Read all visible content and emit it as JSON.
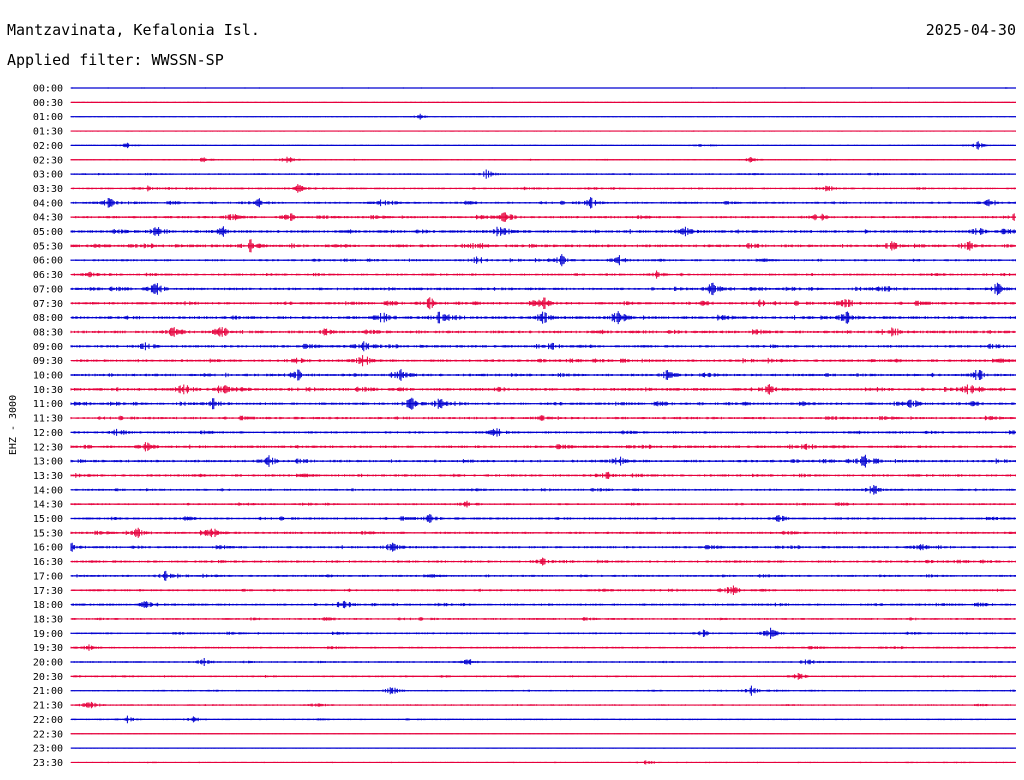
{
  "header": {
    "station": "Mantzavinata, Kefalonia Isl.",
    "date": "2025-04-30",
    "filter": "Applied filter: WWSSN-SP"
  },
  "chart_data": {
    "type": "line",
    "ylabel": "EHZ - 3000",
    "colors": [
      "#0000d0",
      "#e6003c"
    ],
    "rows": [
      {
        "label": "00:00",
        "activity": 0.05,
        "events": []
      },
      {
        "label": "00:30",
        "activity": 0.05,
        "events": []
      },
      {
        "label": "01:00",
        "activity": 0.08,
        "events": [
          [
            0.37,
            0.5
          ]
        ]
      },
      {
        "label": "01:30",
        "activity": 0.06,
        "events": []
      },
      {
        "label": "02:00",
        "activity": 0.12,
        "events": [
          [
            0.06,
            0.5
          ],
          [
            0.67,
            0.4
          ],
          [
            0.96,
            1.0
          ]
        ]
      },
      {
        "label": "02:30",
        "activity": 0.15,
        "events": [
          [
            0.14,
            0.4
          ],
          [
            0.23,
            0.8
          ],
          [
            0.72,
            0.5
          ]
        ]
      },
      {
        "label": "03:00",
        "activity": 0.3,
        "events": [
          [
            0.44,
            0.8
          ]
        ]
      },
      {
        "label": "03:30",
        "activity": 0.4,
        "events": [
          [
            0.08,
            0.6
          ],
          [
            0.24,
            0.8
          ],
          [
            0.8,
            0.9
          ]
        ]
      },
      {
        "label": "04:00",
        "activity": 0.5,
        "events": [
          [
            0.04,
            1.0
          ],
          [
            0.2,
            0.8
          ],
          [
            0.33,
            0.7
          ],
          [
            0.55,
            0.9
          ],
          [
            0.97,
            0.9
          ]
        ]
      },
      {
        "label": "04:30",
        "activity": 0.6,
        "events": [
          [
            0.17,
            0.9
          ],
          [
            0.23,
            1.0
          ],
          [
            0.46,
            1.2
          ],
          [
            0.79,
            1.3
          ],
          [
            1.0,
            1.3
          ]
        ]
      },
      {
        "label": "05:00",
        "activity": 0.8,
        "events": [
          [
            0.09,
            1.1
          ],
          [
            0.16,
            1.2
          ],
          [
            0.45,
            1.0
          ],
          [
            0.65,
            0.8
          ],
          [
            0.96,
            0.7
          ]
        ]
      },
      {
        "label": "05:30",
        "activity": 0.8,
        "events": [
          [
            0.19,
            1.2
          ],
          [
            0.43,
            1.1
          ],
          [
            0.87,
            1.0
          ],
          [
            0.95,
            0.8
          ]
        ]
      },
      {
        "label": "06:00",
        "activity": 0.5,
        "events": [
          [
            0.43,
            0.9
          ],
          [
            0.52,
            1.1
          ],
          [
            0.58,
            0.8
          ]
        ]
      },
      {
        "label": "06:30",
        "activity": 0.5,
        "events": [
          [
            0.02,
            0.6
          ],
          [
            0.62,
            0.6
          ]
        ]
      },
      {
        "label": "07:00",
        "activity": 0.7,
        "events": [
          [
            0.09,
            1.1
          ],
          [
            0.68,
            1.2
          ],
          [
            0.86,
            1.0
          ],
          [
            0.98,
            1.2
          ]
        ]
      },
      {
        "label": "07:30",
        "activity": 0.7,
        "events": [
          [
            0.38,
            1.1
          ],
          [
            0.5,
            1.2
          ],
          [
            0.73,
            0.9
          ],
          [
            0.82,
            1.2
          ]
        ]
      },
      {
        "label": "08:00",
        "activity": 0.8,
        "events": [
          [
            0.33,
            1.3
          ],
          [
            0.39,
            1.1
          ],
          [
            0.5,
            1.3
          ],
          [
            0.58,
            1.0
          ],
          [
            0.82,
            1.3
          ]
        ]
      },
      {
        "label": "08:30",
        "activity": 0.8,
        "events": [
          [
            0.11,
            1.2
          ],
          [
            0.16,
            1.1
          ],
          [
            0.27,
            0.8
          ],
          [
            0.87,
            1.0
          ]
        ]
      },
      {
        "label": "09:00",
        "activity": 0.7,
        "events": [
          [
            0.08,
            1.0
          ],
          [
            0.31,
            1.1
          ],
          [
            0.51,
            0.8
          ]
        ]
      },
      {
        "label": "09:30",
        "activity": 0.7,
        "events": [
          [
            0.24,
            0.9
          ],
          [
            0.31,
            1.2
          ]
        ]
      },
      {
        "label": "10:00",
        "activity": 0.7,
        "events": [
          [
            0.24,
            1.2
          ],
          [
            0.35,
            0.9
          ],
          [
            0.63,
            0.9
          ],
          [
            0.96,
            1.2
          ]
        ]
      },
      {
        "label": "10:30",
        "activity": 0.8,
        "events": [
          [
            0.12,
            1.3
          ],
          [
            0.16,
            1.1
          ],
          [
            0.74,
            0.9
          ],
          [
            0.95,
            1.2
          ]
        ]
      },
      {
        "label": "11:00",
        "activity": 0.7,
        "events": [
          [
            0.15,
            1.1
          ],
          [
            0.36,
            1.2
          ],
          [
            0.39,
            1.0
          ],
          [
            0.89,
            1.0
          ]
        ]
      },
      {
        "label": "11:30",
        "activity": 0.6,
        "events": [
          [
            0.5,
            0.7
          ]
        ]
      },
      {
        "label": "12:00",
        "activity": 0.6,
        "events": [
          [
            0.05,
            0.8
          ],
          [
            0.45,
            0.9
          ]
        ]
      },
      {
        "label": "12:30",
        "activity": 0.7,
        "events": [
          [
            0.08,
            0.9
          ],
          [
            0.78,
            0.9
          ]
        ]
      },
      {
        "label": "13:00",
        "activity": 0.7,
        "events": [
          [
            0.21,
            1.0
          ],
          [
            0.58,
            0.9
          ],
          [
            0.84,
            1.2
          ]
        ]
      },
      {
        "label": "13:30",
        "activity": 0.6,
        "events": [
          [
            0.57,
            0.8
          ]
        ]
      },
      {
        "label": "14:00",
        "activity": 0.5,
        "events": [
          [
            0.85,
            1.0
          ]
        ]
      },
      {
        "label": "14:30",
        "activity": 0.45,
        "events": [
          [
            0.42,
            0.7
          ]
        ]
      },
      {
        "label": "15:00",
        "activity": 0.55,
        "events": [
          [
            0.38,
            0.7
          ],
          [
            0.75,
            0.6
          ]
        ]
      },
      {
        "label": "15:30",
        "activity": 0.6,
        "events": [
          [
            0.07,
            1.0
          ],
          [
            0.15,
            0.8
          ]
        ]
      },
      {
        "label": "16:00",
        "activity": 0.6,
        "events": [
          [
            0.0,
            1.0
          ],
          [
            0.34,
            0.9
          ],
          [
            0.9,
            0.7
          ]
        ]
      },
      {
        "label": "16:30",
        "activity": 0.6,
        "events": [
          [
            0.5,
            0.7
          ]
        ]
      },
      {
        "label": "17:00",
        "activity": 0.5,
        "events": [
          [
            0.1,
            0.8
          ]
        ]
      },
      {
        "label": "17:30",
        "activity": 0.5,
        "events": [
          [
            0.7,
            0.8
          ]
        ]
      },
      {
        "label": "18:00",
        "activity": 0.55,
        "events": [
          [
            0.08,
            0.7
          ],
          [
            0.29,
            0.7
          ]
        ]
      },
      {
        "label": "18:30",
        "activity": 0.45,
        "events": []
      },
      {
        "label": "19:00",
        "activity": 0.4,
        "events": [
          [
            0.74,
            1.1
          ],
          [
            0.67,
            0.6
          ]
        ]
      },
      {
        "label": "19:30",
        "activity": 0.4,
        "events": [
          [
            0.02,
            0.6
          ]
        ]
      },
      {
        "label": "20:00",
        "activity": 0.35,
        "events": [
          [
            0.14,
            0.7
          ],
          [
            0.42,
            0.7
          ],
          [
            0.78,
            0.6
          ]
        ]
      },
      {
        "label": "20:30",
        "activity": 0.3,
        "events": [
          [
            0.77,
            0.6
          ]
        ]
      },
      {
        "label": "21:00",
        "activity": 0.25,
        "events": [
          [
            0.34,
            0.8
          ],
          [
            0.72,
            0.8
          ]
        ]
      },
      {
        "label": "21:30",
        "activity": 0.25,
        "events": [
          [
            0.02,
            0.8
          ],
          [
            0.26,
            0.6
          ]
        ]
      },
      {
        "label": "22:00",
        "activity": 0.2,
        "events": [
          [
            0.06,
            0.6
          ],
          [
            0.13,
            0.5
          ]
        ]
      },
      {
        "label": "22:30",
        "activity": 0.05,
        "events": []
      },
      {
        "label": "23:00",
        "activity": 0.05,
        "events": []
      },
      {
        "label": "23:30",
        "activity": 0.1,
        "events": [
          [
            0.61,
            0.5
          ]
        ]
      }
    ]
  }
}
